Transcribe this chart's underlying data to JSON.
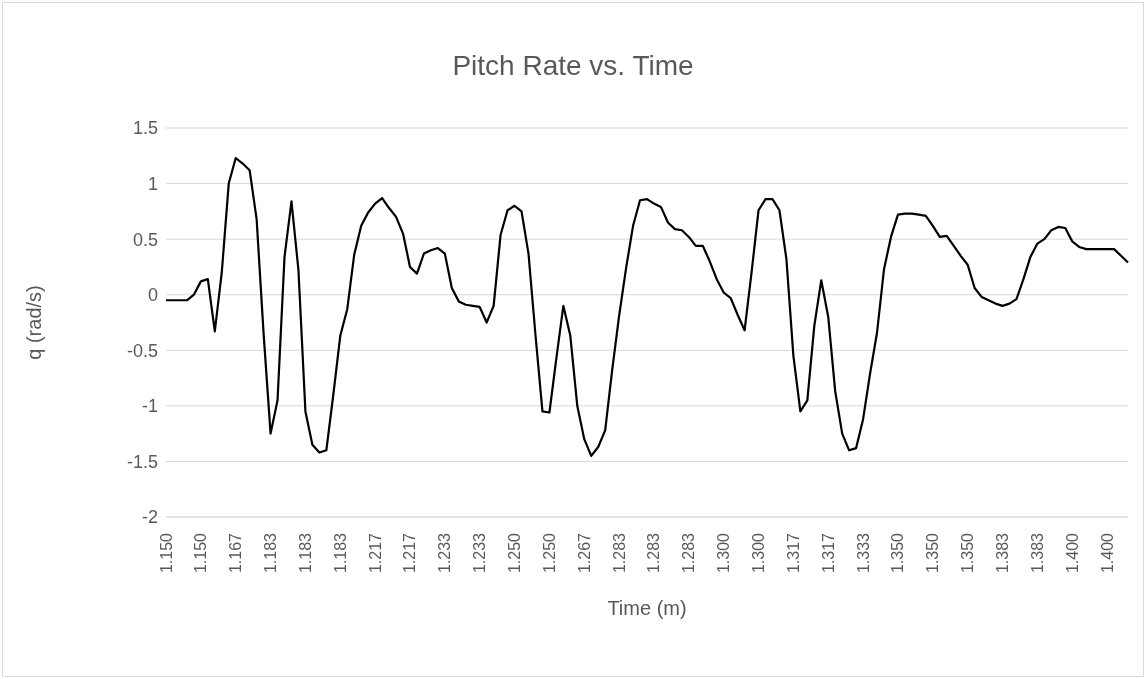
{
  "chart_data": {
    "type": "line",
    "title": "Pitch Rate vs. Time",
    "xlabel": "Time (m)",
    "ylabel": "q (rad/s)",
    "categories": [
      "1.150",
      null,
      null,
      null,
      null,
      "1.150",
      null,
      null,
      null,
      null,
      "1.167",
      null,
      null,
      null,
      null,
      "1.183",
      null,
      null,
      null,
      null,
      "1.183",
      null,
      null,
      null,
      null,
      "1.183",
      null,
      null,
      null,
      null,
      "1.217",
      null,
      null,
      null,
      null,
      "1.217",
      null,
      null,
      null,
      null,
      "1.233",
      null,
      null,
      null,
      null,
      "1.233",
      null,
      null,
      null,
      null,
      "1.250",
      null,
      null,
      null,
      null,
      "1.250",
      null,
      null,
      null,
      null,
      "1.267",
      null,
      null,
      null,
      null,
      "1.283",
      null,
      null,
      null,
      null,
      "1.283",
      null,
      null,
      null,
      null,
      "1.283",
      null,
      null,
      null,
      null,
      "1.300",
      null,
      null,
      null,
      null,
      "1.300",
      null,
      null,
      null,
      null,
      "1.317",
      null,
      null,
      null,
      null,
      "1.317",
      null,
      null,
      null,
      null,
      "1.333",
      null,
      null,
      null,
      null,
      "1.350",
      null,
      null,
      null,
      null,
      "1.350",
      null,
      null,
      null,
      null,
      "1.350",
      null,
      null,
      null,
      null,
      "1.383",
      null,
      null,
      null,
      null,
      "1.383",
      null,
      null,
      null,
      null,
      "1.400",
      null,
      null,
      null,
      null,
      "1.400",
      null,
      null,
      null
    ],
    "series": [
      {
        "color": "#000000",
        "values": [
          -0.05,
          -0.05,
          -0.05,
          -0.05,
          0.0,
          0.12,
          0.14,
          -0.33,
          0.2,
          1.0,
          1.23,
          1.18,
          1.12,
          0.68,
          -0.35,
          -1.25,
          -0.95,
          0.34,
          0.84,
          0.22,
          -1.05,
          -1.35,
          -1.42,
          -1.4,
          -0.9,
          -0.37,
          -0.13,
          0.36,
          0.62,
          0.74,
          0.82,
          0.87,
          0.78,
          0.7,
          0.55,
          0.25,
          0.19,
          0.37,
          0.4,
          0.42,
          0.37,
          0.06,
          -0.06,
          -0.09,
          -0.1,
          -0.11,
          -0.25,
          -0.1,
          0.54,
          0.76,
          0.8,
          0.75,
          0.37,
          -0.36,
          -1.05,
          -1.06,
          -0.57,
          -0.1,
          -0.37,
          -1.0,
          -1.3,
          -1.45,
          -1.37,
          -1.22,
          -0.68,
          -0.19,
          0.24,
          0.62,
          0.85,
          0.86,
          0.82,
          0.79,
          0.65,
          0.59,
          0.58,
          0.52,
          0.44,
          0.44,
          0.3,
          0.14,
          0.02,
          -0.03,
          -0.18,
          -0.32,
          0.2,
          0.76,
          0.86,
          0.86,
          0.76,
          0.32,
          -0.55,
          -1.05,
          -0.95,
          -0.28,
          0.13,
          -0.2,
          -0.87,
          -1.25,
          -1.4,
          -1.38,
          -1.12,
          -0.71,
          -0.34,
          0.23,
          0.52,
          0.72,
          0.73,
          0.73,
          0.72,
          0.71,
          0.62,
          0.52,
          0.53,
          0.44,
          0.35,
          0.27,
          0.06,
          -0.02,
          -0.05,
          -0.08,
          -0.1,
          -0.08,
          -0.04,
          0.14,
          0.34,
          0.46,
          0.5,
          0.58,
          0.61,
          0.6,
          0.48,
          0.43,
          0.41,
          0.41,
          0.41,
          0.41,
          0.41,
          0.35,
          0.29
        ]
      }
    ],
    "ylim": [
      -2,
      1.5
    ],
    "yticks": [
      -2,
      -1.5,
      -1,
      -0.5,
      0,
      0.5,
      1,
      1.5
    ],
    "grid": "y"
  }
}
